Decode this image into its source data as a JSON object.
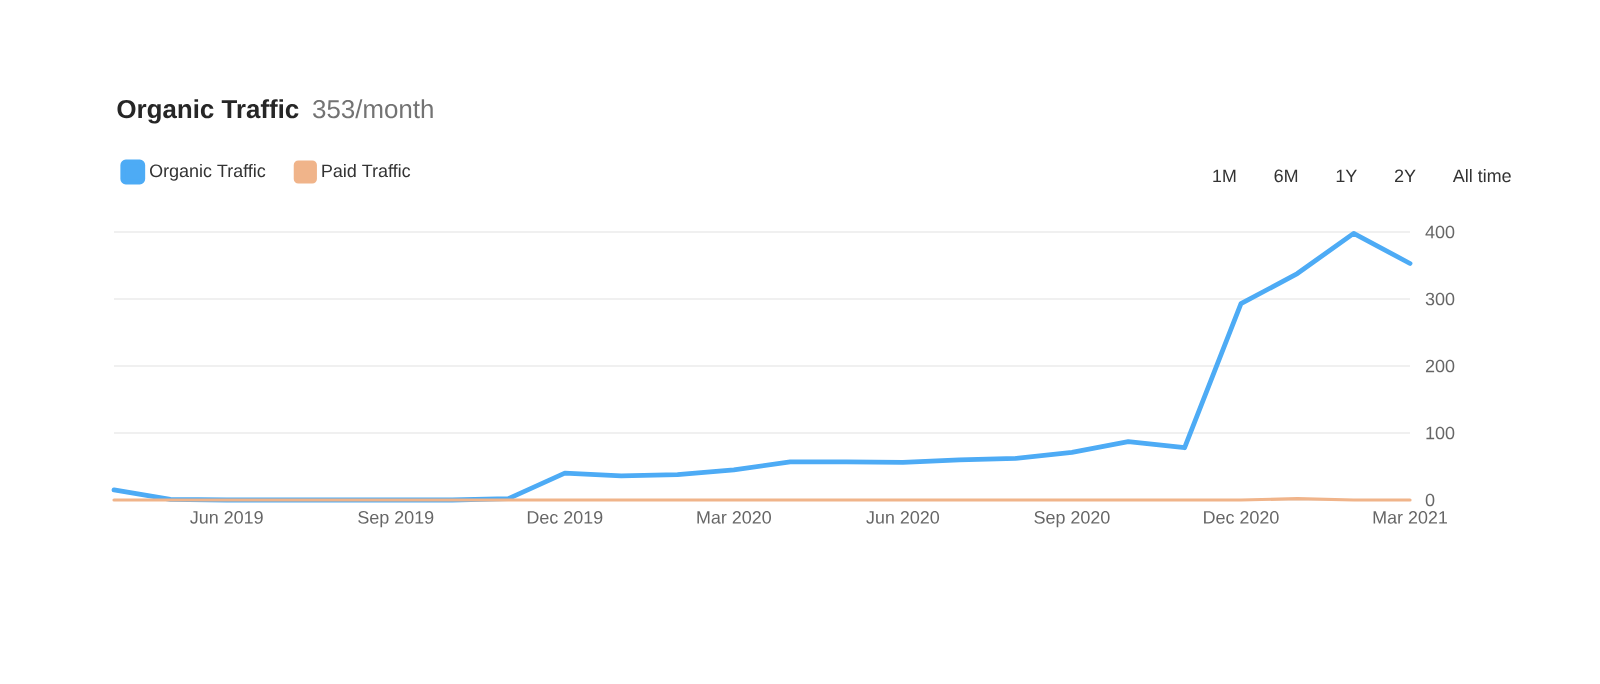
{
  "chart_data": {
    "type": "line",
    "title": "Organic Traffic",
    "subtitle": "353/month",
    "x": [
      "2019-04",
      "2019-05",
      "2019-06",
      "2019-07",
      "2019-08",
      "2019-09",
      "2019-10",
      "2019-11",
      "2019-12",
      "2020-01",
      "2020-02",
      "2020-03",
      "2020-04",
      "2020-05",
      "2020-06",
      "2020-07",
      "2020-08",
      "2020-09",
      "2020-10",
      "2020-11",
      "2020-12",
      "2021-01",
      "2021-02",
      "2021-03"
    ],
    "series": [
      {
        "name": "Organic Traffic",
        "color": "#4dabf5",
        "values": [
          15,
          1,
          0,
          0,
          0,
          0,
          0,
          2,
          40,
          36,
          38,
          45,
          57,
          57,
          56,
          60,
          62,
          71,
          87,
          78,
          293,
          338,
          398,
          353
        ]
      },
      {
        "name": "Paid Traffic",
        "color": "#f0b48a",
        "values": [
          0,
          0,
          0,
          0,
          0,
          0,
          0,
          0,
          0,
          0,
          0,
          0,
          0,
          0,
          0,
          0,
          0,
          0,
          0,
          0,
          0,
          2,
          0,
          0
        ]
      }
    ],
    "xlim": [
      "2019-04",
      "2021-03"
    ],
    "xticks": [
      {
        "value": "2019-06",
        "label": "Jun 2019"
      },
      {
        "value": "2019-09",
        "label": "Sep 2019"
      },
      {
        "value": "2019-12",
        "label": "Dec 2019"
      },
      {
        "value": "2020-03",
        "label": "Mar 2020"
      },
      {
        "value": "2020-06",
        "label": "Jun 2020"
      },
      {
        "value": "2020-09",
        "label": "Sep 2020"
      },
      {
        "value": "2020-12",
        "label": "Dec 2020"
      },
      {
        "value": "2021-03",
        "label": "Mar 2021"
      }
    ],
    "ylim": [
      0,
      400
    ],
    "yticks": [
      0,
      100,
      200,
      300,
      400
    ],
    "grid": "y",
    "legend": "top left",
    "marker": "none",
    "line_style": "solid",
    "annotations": [
      "1M",
      "6M",
      "1Y",
      "2Y",
      "All time"
    ]
  }
}
